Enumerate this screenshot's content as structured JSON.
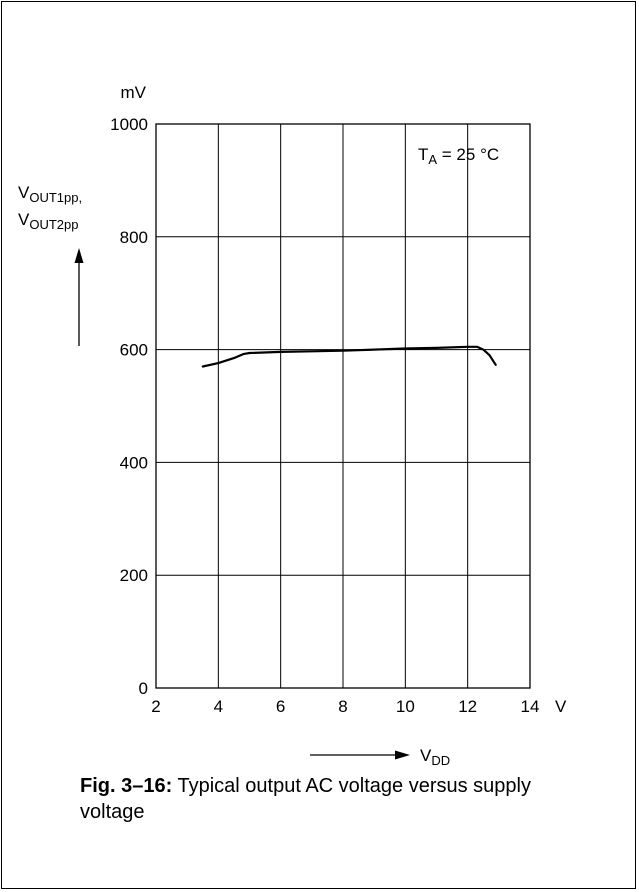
{
  "chart_data": {
    "type": "line",
    "x_unit": "V",
    "y_unit": "mV",
    "xlim": [
      2,
      14
    ],
    "ylim": [
      0,
      1000
    ],
    "x_ticks": [
      "2",
      "4",
      "6",
      "8",
      "10",
      "12",
      "14"
    ],
    "y_ticks": [
      "0",
      "200",
      "400",
      "600",
      "800",
      "1000"
    ],
    "y_axis_label_line1_main": "V",
    "y_axis_label_line1_sub": "OUT1pp,",
    "y_axis_label_line2_main": "V",
    "y_axis_label_line2_sub": "OUT2pp",
    "x_axis_label_main": "V",
    "x_axis_label_sub": "DD",
    "annotation_main": "T",
    "annotation_sub": "A",
    "annotation_rest": " = 25 °C",
    "grid": true,
    "series": [
      {
        "x": [
          3.5,
          4.0,
          4.5,
          4.8,
          5.0,
          6.0,
          7.0,
          8.0,
          9.0,
          10.0,
          11.0,
          12.0,
          12.3,
          12.5,
          12.7,
          12.9
        ],
        "y": [
          570,
          576,
          585,
          592,
          594,
          596,
          597,
          598,
          600,
          602,
          603,
          605,
          605,
          600,
          590,
          573
        ]
      }
    ]
  },
  "caption": {
    "label": "Fig. 3–16:",
    "text": " Typical output AC voltage versus supply voltage"
  }
}
